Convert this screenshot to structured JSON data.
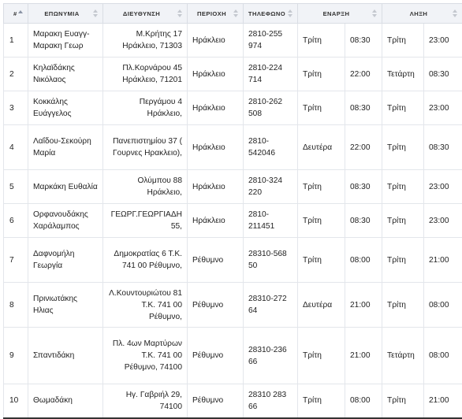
{
  "headers": {
    "num": "#",
    "name": "ΕΠΩΝΥΜΙΑ",
    "address": "ΔΙΕΥΘΥΝΣΗ",
    "area": "ΠΕΡΙΟΧΗ",
    "phone": "ΤΗΛΕΦΩΝΟ",
    "start": "ΕΝΑΡΞΗ",
    "end": "ΛΗΞΗ"
  },
  "rows": [
    {
      "num": "1",
      "name": "Μαρακη Ευαγγ-Μαρακη Γεωρ",
      "address": "Μ.Κρήτης 17 Ηράκλειο, 71303",
      "area": "Ηράκλειο",
      "phone": "2810-255 974",
      "start_day": "Τρίτη",
      "start_time": "08:30",
      "end_day": "Τρίτη",
      "end_time": "23:00"
    },
    {
      "num": "2",
      "name": "Κηλαϊδάκης Νικόλαος",
      "address": "Πλ.Κορνάρου 45 Ηράκλειο, 71201",
      "area": "Ηράκλειο",
      "phone": "2810-224 714",
      "start_day": "Τρίτη",
      "start_time": "22:00",
      "end_day": "Τετάρτη",
      "end_time": "08:30"
    },
    {
      "num": "3",
      "name": "Κοκκάλης Ευάγγελος",
      "address": "Περγάμου 4 Ηράκλειο,",
      "area": "Ηράκλειο",
      "phone": "2810-262 508",
      "start_day": "Τρίτη",
      "start_time": "08:30",
      "end_day": "Τρίτη",
      "end_time": "23:00"
    },
    {
      "num": "4",
      "name": "Λαΐδου-Σεκούρη Μαρία",
      "address": "Πανεπιστημίου 37 ( Γουρνες Ηρακλειο),",
      "area": "Ηράκλειο",
      "phone": "2810-542046",
      "start_day": "Δευτέρα",
      "start_time": "22:00",
      "end_day": "Τρίτη",
      "end_time": "08:30"
    },
    {
      "num": "5",
      "name": "Μαρκάκη Ευθαλία",
      "address": "Ολύμπου 88 Ηράκλειο,",
      "area": "Ηράκλειο",
      "phone": "2810-324 220",
      "start_day": "Τρίτη",
      "start_time": "08:30",
      "end_day": "Τρίτη",
      "end_time": "23:00"
    },
    {
      "num": "6",
      "name": "Ορφανουδάκης Χαράλαμπος",
      "address": "ΓΕΩΡΓ.ΓΕΩΡΓΙΑΔΗ 55,",
      "area": "Ηράκλειο",
      "phone": "2810-211451",
      "start_day": "Τρίτη",
      "start_time": "08:30",
      "end_day": "Τρίτη",
      "end_time": "23:00"
    },
    {
      "num": "7",
      "name": "Δαφνομήλη Γεωργία",
      "address": "Δημοκρατίας 6 Τ.Κ. 741 00 Ρέθυμνο,",
      "area": "Ρέθυμνο",
      "phone": "28310-568 50",
      "start_day": "Τρίτη",
      "start_time": "08:00",
      "end_day": "Τρίτη",
      "end_time": "21:00"
    },
    {
      "num": "8",
      "name": "Πρινιωτάκης Ηλιας",
      "address": "Λ.Κουντουριώτου 81 Τ.Κ. 741 00 Ρέθυμνο,",
      "area": "Ρέθυμνο",
      "phone": "28310-272 64",
      "start_day": "Δευτέρα",
      "start_time": "21:00",
      "end_day": "Τρίτη",
      "end_time": "08:00"
    },
    {
      "num": "9",
      "name": "Σπαντιδάκη",
      "address": "Πλ. 4ων Μαρτύρων Τ.Κ. 741 00 Ρέθυμνο, 74100",
      "area": "Ρέθυμνο",
      "phone": "28310-236 66",
      "start_day": "Τρίτη",
      "start_time": "21:00",
      "end_day": "Τετάρτη",
      "end_time": "08:00"
    },
    {
      "num": "10",
      "name": "Θωμαδάκη",
      "address": "Ηγ. Γαβριήλ 29, 74100",
      "area": "Ρέθυμνο",
      "phone": "28310 283 66",
      "start_day": "Τρίτη",
      "start_time": "08:00",
      "end_day": "Τρίτη",
      "end_time": "21:00"
    }
  ]
}
